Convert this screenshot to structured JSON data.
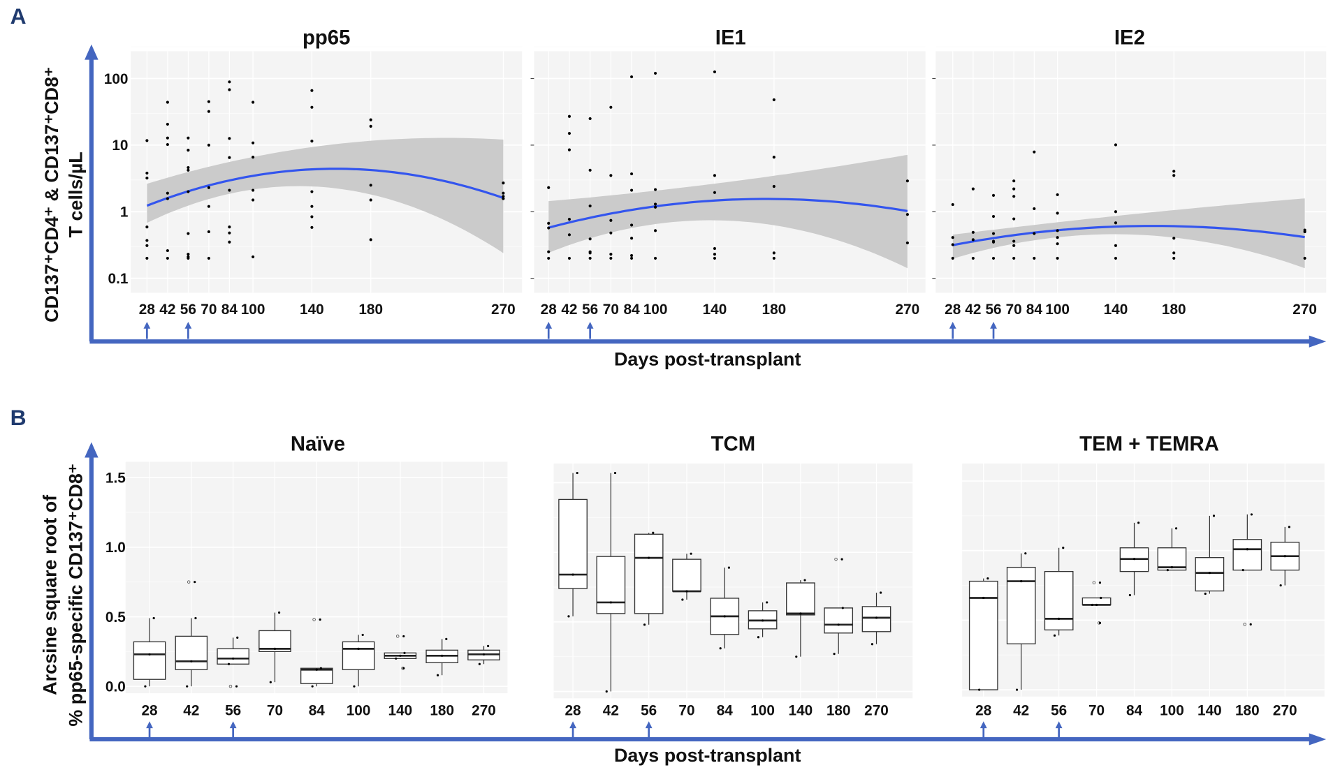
{
  "figure": {
    "panel_a_letter": "A",
    "panel_b_letter": "B"
  },
  "colors": {
    "axis_arrow": "#4466c0",
    "smooth_line": "#3355ee",
    "ci_band": "#c8c8c8",
    "panel_bg": "#f4f4f4",
    "letter": "#1f3a6e"
  },
  "panel_a": {
    "ylabel_line1": "CD137⁺CD4⁺ & CD137⁺CD8⁺",
    "ylabel_line2": "T cells/µL",
    "xlabel": "Days post-transplant",
    "treatment_days": [
      28,
      56
    ]
  },
  "panel_b": {
    "ylabel_line1": "Arcsine square root of",
    "ylabel_line2": "% pp65-specific CD137⁺CD8⁺",
    "xlabel": "Days post-transplant",
    "treatment_days": [
      "28",
      "56"
    ]
  },
  "chart_data": [
    {
      "type": "scatter",
      "title": "pp65",
      "yscale": "log",
      "ylim": [
        0.07,
        250
      ],
      "yticks": [
        "100",
        "10",
        "1",
        "0.1"
      ],
      "ytick_values": [
        100,
        10,
        1,
        0.1
      ],
      "show_yticks": true,
      "xticks": [
        "28",
        "42",
        "56",
        "70",
        "84",
        "100",
        "140",
        "180",
        "270"
      ],
      "groups": [
        {
          "day": 28,
          "values": [
            11.7,
            3.8,
            3.2,
            0.59,
            0.37,
            0.31,
            0.2
          ]
        },
        {
          "day": 42,
          "values": [
            44,
            20.6,
            12.8,
            10.2,
            1.9,
            1.57,
            0.26,
            0.2
          ]
        },
        {
          "day": 56,
          "values": [
            12.8,
            8.4,
            4.6,
            4.2,
            2.0,
            0.47,
            0.23,
            0.21,
            0.2
          ]
        },
        {
          "day": 70,
          "values": [
            45,
            32,
            10,
            2.3,
            1.2,
            0.5,
            0.2
          ]
        },
        {
          "day": 84,
          "values": [
            89,
            68,
            12.6,
            6.5,
            2.1,
            0.59,
            0.48,
            0.35
          ]
        },
        {
          "day": 100,
          "values": [
            44,
            10.8,
            6.6,
            2.1,
            1.5,
            0.21
          ]
        },
        {
          "day": 140,
          "values": [
            66,
            37,
            11.5,
            2.0,
            1.2,
            0.84,
            0.58
          ]
        },
        {
          "day": 180,
          "values": [
            24,
            19.2,
            2.5,
            1.5,
            0.38
          ]
        },
        {
          "day": 270,
          "values": [
            2.7,
            1.9,
            1.7,
            1.57
          ]
        }
      ],
      "smooth": {
        "x": [
          28,
          56,
          84,
          100,
          140,
          160,
          180,
          270
        ],
        "fit": [
          1.25,
          2.0,
          2.9,
          3.5,
          4.3,
          4.4,
          4.3,
          1.6
        ],
        "lower": [
          0.57,
          1.64,
          1.94,
          2.0,
          2.1,
          2.1,
          2.0,
          0.24
        ],
        "upper": [
          2.84,
          3.45,
          5.4,
          7.0,
          10.3,
          10.6,
          10.8,
          12.2
        ]
      }
    },
    {
      "type": "scatter",
      "title": "IE1",
      "yscale": "log",
      "ylim": [
        0.07,
        250
      ],
      "show_yticks": false,
      "xticks": [
        "28",
        "42",
        "56",
        "70",
        "84",
        "100",
        "140",
        "180",
        "270"
      ],
      "groups": [
        {
          "day": 28,
          "values": [
            2.3,
            0.67,
            0.57,
            0.25,
            0.2
          ]
        },
        {
          "day": 42,
          "values": [
            27,
            15,
            8.5,
            0.77,
            0.45,
            0.2
          ]
        },
        {
          "day": 56,
          "values": [
            25,
            4.2,
            1.22,
            0.39,
            0.25,
            0.24,
            0.2
          ]
        },
        {
          "day": 70,
          "values": [
            37,
            3.5,
            0.74,
            0.48,
            0.23,
            0.2
          ]
        },
        {
          "day": 84,
          "values": [
            106,
            3.7,
            2.1,
            0.63,
            0.4,
            0.22,
            0.2
          ]
        },
        {
          "day": 100,
          "values": [
            120,
            2.15,
            1.3,
            1.17,
            0.52,
            0.2
          ]
        },
        {
          "day": 140,
          "values": [
            126,
            3.5,
            1.94,
            0.28,
            0.23,
            0.2
          ]
        },
        {
          "day": 180,
          "values": [
            48,
            6.6,
            2.4,
            0.24,
            0.2
          ]
        },
        {
          "day": 270,
          "values": [
            2.9,
            0.91,
            0.34
          ]
        }
      ],
      "smooth": {
        "x": [
          28,
          70,
          100,
          140,
          180,
          220,
          270
        ],
        "fit": [
          0.57,
          0.96,
          1.2,
          1.46,
          1.53,
          1.44,
          1.02
        ],
        "lower": [
          0.25,
          0.5,
          0.6,
          0.67,
          0.67,
          0.45,
          0.13
        ],
        "upper": [
          1.35,
          1.8,
          2.2,
          3.0,
          3.2,
          3.9,
          8.0
        ]
      }
    },
    {
      "type": "scatter",
      "title": "IE2",
      "yscale": "log",
      "ylim": [
        0.07,
        250
      ],
      "show_yticks": false,
      "xticks": [
        "28",
        "42",
        "56",
        "70",
        "84",
        "100",
        "140",
        "180",
        "270"
      ],
      "groups": [
        {
          "day": 28,
          "values": [
            1.28,
            0.41,
            0.32,
            0.2
          ]
        },
        {
          "day": 42,
          "values": [
            2.2,
            0.49,
            0.38,
            0.2
          ]
        },
        {
          "day": 56,
          "values": [
            1.76,
            0.85,
            0.47,
            0.36,
            0.35,
            0.2
          ]
        },
        {
          "day": 70,
          "values": [
            2.9,
            2.2,
            1.7,
            0.78,
            0.36,
            0.31,
            0.2
          ]
        },
        {
          "day": 84,
          "values": [
            7.9,
            1.11,
            0.47,
            0.2
          ]
        },
        {
          "day": 100,
          "values": [
            1.8,
            0.95,
            0.52,
            0.41,
            0.33,
            0.2
          ]
        },
        {
          "day": 140,
          "values": [
            10.1,
            1.0,
            0.68,
            0.31,
            0.2
          ]
        },
        {
          "day": 180,
          "values": [
            4.05,
            3.5,
            0.4,
            0.24,
            0.2
          ]
        },
        {
          "day": 270,
          "values": [
            0.53,
            0.5,
            0.2
          ]
        }
      ],
      "smooth": {
        "x": [
          28,
          70,
          100,
          140,
          180,
          270
        ],
        "fit": [
          0.33,
          0.41,
          0.52,
          0.62,
          0.62,
          0.41
        ],
        "lower": [
          0.2,
          0.33,
          0.4,
          0.45,
          0.43,
          0.14
        ],
        "upper": [
          0.46,
          0.55,
          0.7,
          0.95,
          0.98,
          1.6
        ]
      }
    },
    {
      "type": "box",
      "title": "Naïve",
      "ylim": [
        0,
        1.6
      ],
      "yticks": [
        "1.5",
        "1.0",
        "0.5",
        "0.0"
      ],
      "ytick_values": [
        1.5,
        1.0,
        0.5,
        0.0
      ],
      "show_yticks": true,
      "categories": [
        "28",
        "42",
        "56",
        "70",
        "84",
        "100",
        "140",
        "180",
        "270"
      ],
      "boxes": [
        {
          "min": 0,
          "q1": 0.05,
          "median": 0.23,
          "q3": 0.32,
          "max": 0.49,
          "outliers": []
        },
        {
          "min": 0,
          "q1": 0.12,
          "median": 0.18,
          "q3": 0.36,
          "max": 0.49,
          "outliers": [
            0.75
          ]
        },
        {
          "min": 0.16,
          "q1": 0.16,
          "median": 0.2,
          "q3": 0.27,
          "max": 0.35,
          "outliers": [
            0
          ]
        },
        {
          "min": 0.03,
          "q1": 0.25,
          "median": 0.27,
          "q3": 0.4,
          "max": 0.53,
          "outliers": []
        },
        {
          "min": 0,
          "q1": 0.02,
          "median": 0.12,
          "q3": 0.13,
          "max": 0.13,
          "outliers": [
            0.48
          ]
        },
        {
          "min": 0,
          "q1": 0.12,
          "median": 0.27,
          "q3": 0.32,
          "max": 0.37,
          "outliers": []
        },
        {
          "min": 0.2,
          "q1": 0.2,
          "median": 0.22,
          "q3": 0.24,
          "max": 0.24,
          "outliers": [
            0.36,
            0.13
          ]
        },
        {
          "min": 0.08,
          "q1": 0.17,
          "median": 0.22,
          "q3": 0.26,
          "max": 0.34,
          "outliers": []
        },
        {
          "min": 0.16,
          "q1": 0.19,
          "median": 0.23,
          "q3": 0.26,
          "max": 0.29,
          "outliers": []
        }
      ]
    },
    {
      "type": "box",
      "title": "TCM",
      "ylim": [
        0,
        1.6
      ],
      "show_yticks": false,
      "categories": [
        "28",
        "42",
        "56",
        "70",
        "84",
        "100",
        "140",
        "180",
        "270"
      ],
      "boxes": [
        {
          "min": 0.54,
          "q1": 0.74,
          "median": 0.84,
          "q3": 1.38,
          "max": 1.57,
          "outliers": []
        },
        {
          "min": 0,
          "q1": 0.56,
          "median": 0.64,
          "q3": 0.97,
          "max": 1.57,
          "outliers": []
        },
        {
          "min": 0.48,
          "q1": 0.56,
          "median": 0.96,
          "q3": 1.13,
          "max": 1.14,
          "outliers": []
        },
        {
          "min": 0.66,
          "q1": 0.72,
          "median": 0.72,
          "q3": 0.95,
          "max": 0.99,
          "outliers": []
        },
        {
          "min": 0.31,
          "q1": 0.41,
          "median": 0.54,
          "q3": 0.67,
          "max": 0.89,
          "outliers": []
        },
        {
          "min": 0.39,
          "q1": 0.45,
          "median": 0.51,
          "q3": 0.58,
          "max": 0.64,
          "outliers": []
        },
        {
          "min": 0.25,
          "q1": 0.55,
          "median": 0.56,
          "q3": 0.78,
          "max": 0.8,
          "outliers": []
        },
        {
          "min": 0.27,
          "q1": 0.42,
          "median": 0.48,
          "q3": 0.6,
          "max": 0.6,
          "outliers": [
            0.95
          ]
        },
        {
          "min": 0.34,
          "q1": 0.43,
          "median": 0.53,
          "q3": 0.61,
          "max": 0.71,
          "outliers": []
        }
      ]
    },
    {
      "type": "box",
      "title": "TEM + TEMRA",
      "ylim": [
        0,
        1.6
      ],
      "show_yticks": false,
      "categories": [
        "28",
        "42",
        "56",
        "70",
        "84",
        "100",
        "140",
        "180",
        "270"
      ],
      "boxes": [
        {
          "min": 0,
          "q1": 0,
          "median": 0.66,
          "q3": 0.78,
          "max": 0.8,
          "outliers": []
        },
        {
          "min": 0,
          "q1": 0.33,
          "median": 0.78,
          "q3": 0.88,
          "max": 0.98,
          "outliers": []
        },
        {
          "min": 0.39,
          "q1": 0.43,
          "median": 0.51,
          "q3": 0.85,
          "max": 1.02,
          "outliers": []
        },
        {
          "min": 0.61,
          "q1": 0.61,
          "median": 0.61,
          "q3": 0.66,
          "max": 0.66,
          "outliers": [
            0.77,
            0.48
          ]
        },
        {
          "min": 0.68,
          "q1": 0.85,
          "median": 0.94,
          "q3": 1.02,
          "max": 1.2,
          "outliers": []
        },
        {
          "min": 0.86,
          "q1": 0.86,
          "median": 0.88,
          "q3": 1.02,
          "max": 1.16,
          "outliers": []
        },
        {
          "min": 0.69,
          "q1": 0.71,
          "median": 0.84,
          "q3": 0.95,
          "max": 1.25,
          "outliers": []
        },
        {
          "min": 0.86,
          "q1": 0.86,
          "median": 1.01,
          "q3": 1.08,
          "max": 1.26,
          "outliers": [
            0.47
          ]
        },
        {
          "min": 0.75,
          "q1": 0.86,
          "median": 0.96,
          "q3": 1.06,
          "max": 1.17,
          "outliers": []
        }
      ]
    }
  ]
}
